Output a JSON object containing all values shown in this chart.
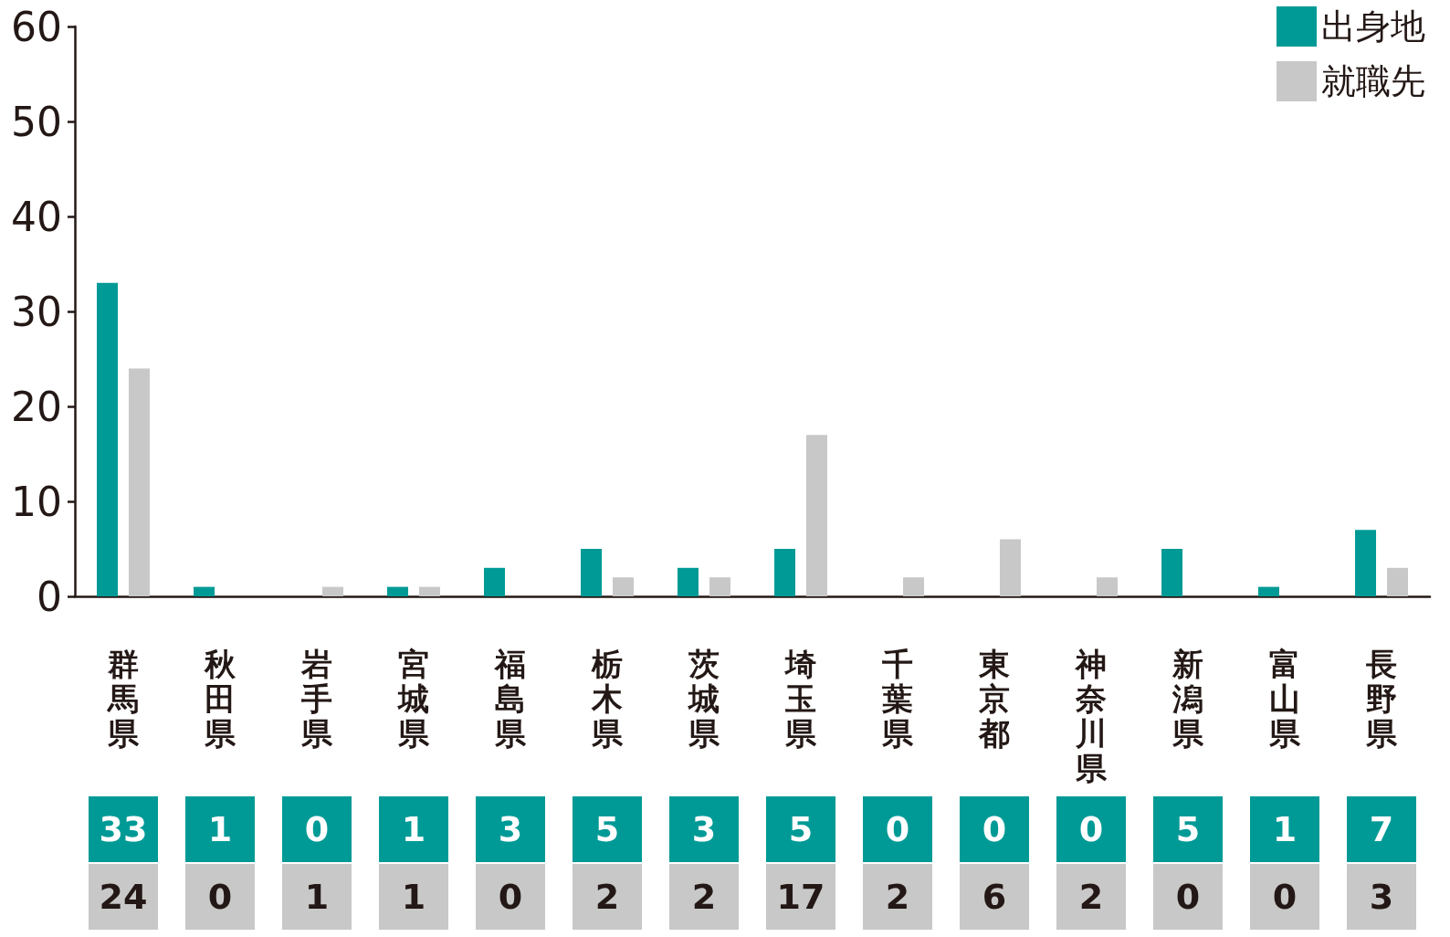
{
  "chart_data": {
    "type": "bar",
    "categories": [
      "群馬県",
      "秋田県",
      "岩手県",
      "宮城県",
      "福島県",
      "栃木県",
      "茨城県",
      "埼玉県",
      "千葉県",
      "東京都",
      "神奈川県",
      "新潟県",
      "富山県",
      "長野県"
    ],
    "series": [
      {
        "name": "出身地",
        "color": "#009a96",
        "values": [
          33,
          1,
          0,
          1,
          3,
          5,
          3,
          5,
          0,
          0,
          0,
          5,
          1,
          7
        ]
      },
      {
        "name": "就職先",
        "color": "#c8c8c8",
        "values": [
          24,
          0,
          1,
          1,
          0,
          2,
          2,
          17,
          2,
          6,
          2,
          0,
          0,
          3
        ]
      }
    ],
    "ylim": [
      0,
      60
    ],
    "yticks": [
      0,
      10,
      20,
      30,
      40,
      50,
      60
    ],
    "grid": false,
    "legend": "top right",
    "data_labels": true
  }
}
